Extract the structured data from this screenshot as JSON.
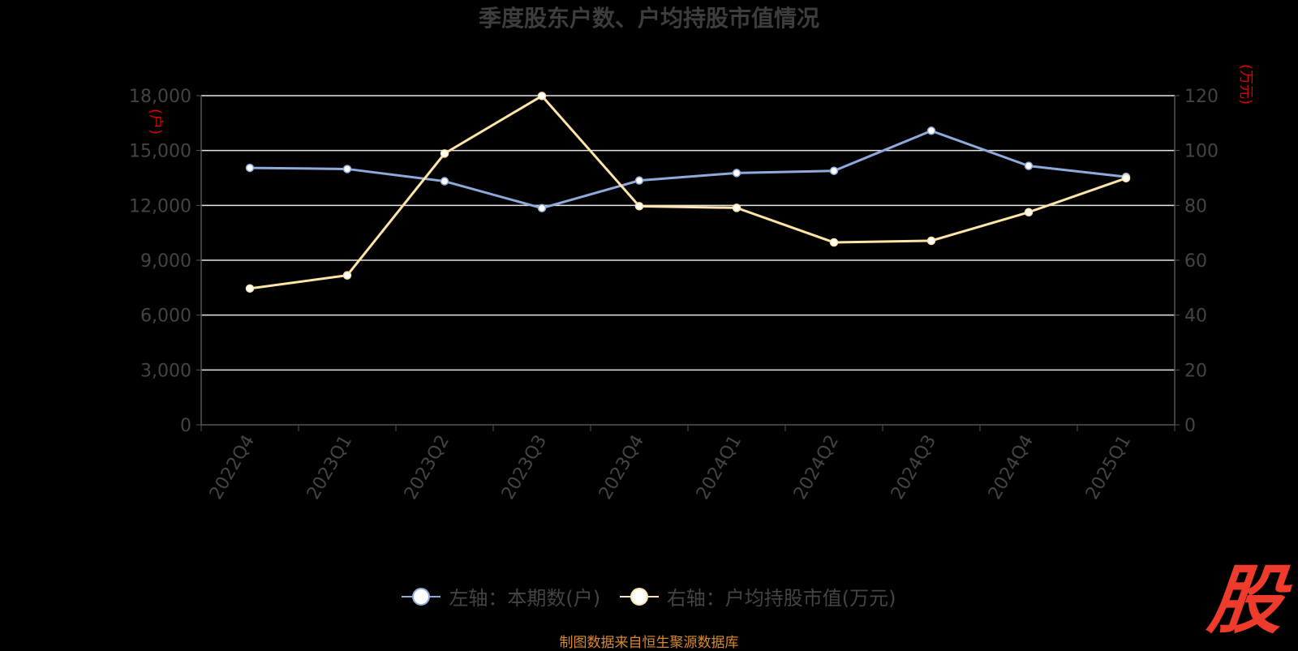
{
  "chart_data": {
    "type": "line",
    "title": "季度股东户数、户均持股市值情况",
    "categories": [
      "2022Q4",
      "2023Q1",
      "2023Q2",
      "2023Q3",
      "2023Q4",
      "2024Q1",
      "2024Q2",
      "2024Q3",
      "2024Q4",
      "2025Q1"
    ],
    "left_axis": {
      "unit": "户",
      "min": 0,
      "max": 18000,
      "ticks": [
        "0",
        "3,000",
        "6,000",
        "9,000",
        "12,000",
        "15,000",
        "18,000"
      ]
    },
    "right_axis": {
      "unit": "万元",
      "min": 0,
      "max": 120,
      "ticks": [
        "0",
        "20",
        "40",
        "60",
        "80",
        "100",
        "120"
      ]
    },
    "grid": true,
    "legend_position": "bottom",
    "series": [
      {
        "name": "左轴：本期数(户)",
        "axis": "left",
        "color": "#8eaadb",
        "values": [
          14050,
          13990,
          13320,
          11850,
          13360,
          13770,
          13890,
          16080,
          14160,
          13560
        ]
      },
      {
        "name": "右轴：户均持股市值(万元)",
        "axis": "right",
        "color": "#ffe4a8",
        "values": [
          49.7,
          54.5,
          98.9,
          119.9,
          79.7,
          79.1,
          66.5,
          67.1,
          77.5,
          89.9
        ]
      }
    ]
  },
  "footer": {
    "source": "制图数据来自恒生聚源数据库",
    "logo_text": "股"
  }
}
